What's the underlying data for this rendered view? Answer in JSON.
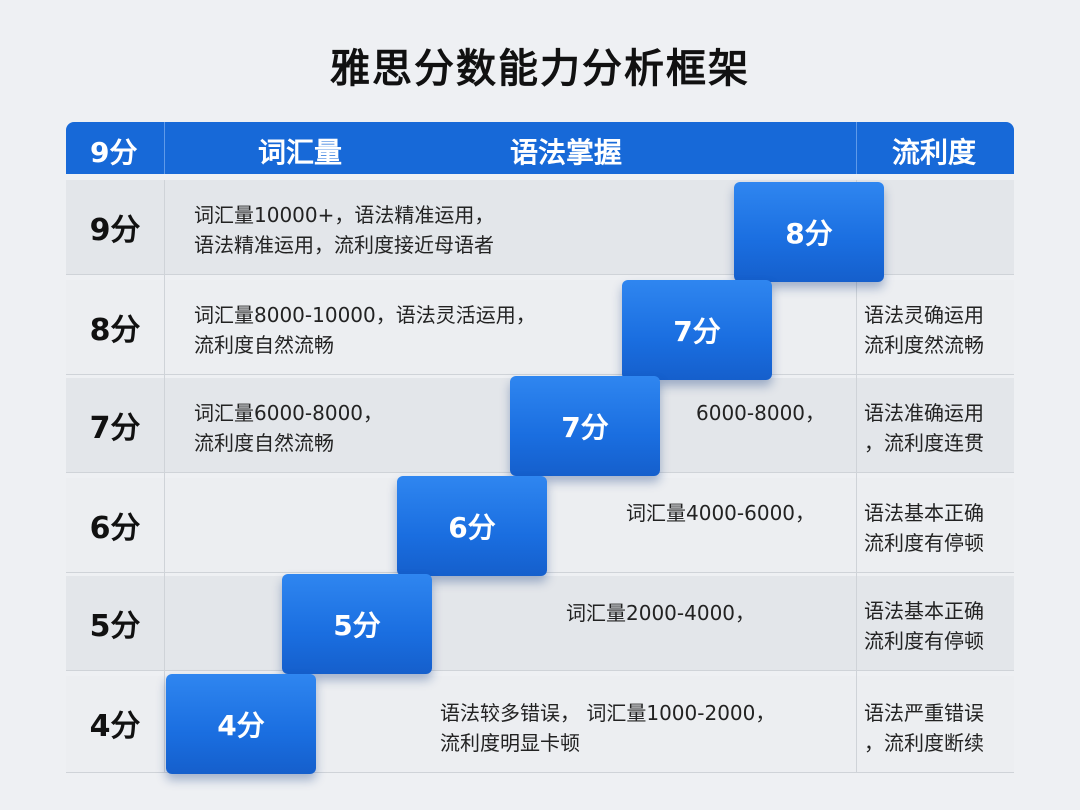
{
  "title": "雅思分数能力分析框架",
  "header": {
    "col1": "9分",
    "col2": "词汇量",
    "col3": "语法掌握",
    "col4": "流利度"
  },
  "rows": [
    {
      "label": "9分",
      "desc": [
        "词汇量10000+，语法精准运用，",
        "语法精准运用，流利度接近母语者"
      ],
      "mid": [],
      "right": []
    },
    {
      "label": "8分",
      "desc": [
        "词汇量8000-10000，语法灵活运用，",
        "流利度自然流畅"
      ],
      "mid": [],
      "right": [
        "语法灵确运用",
        "流利度然流畅"
      ]
    },
    {
      "label": "7分",
      "desc": [
        "词汇量6000-8000，",
        "流利度自然流畅"
      ],
      "mid": [
        "6000-8000，"
      ],
      "right": [
        "语法准确运用",
        "，流利度连贯"
      ]
    },
    {
      "label": "6分",
      "desc": [],
      "mid": [
        "词汇量4000-6000，"
      ],
      "right": [
        "语法基本正确",
        "流利度有停顿"
      ]
    },
    {
      "label": "5分",
      "desc": [],
      "mid": [
        "词汇量2000-4000，"
      ],
      "right": [
        "语法基本正确",
        "流利度有停顿"
      ]
    },
    {
      "label": "4分",
      "desc": [],
      "mid": [
        "语法较多错误， 词汇量1000-2000，",
        "流利度明显卡顿"
      ],
      "right": [
        "语法严重错误",
        "，流利度断续"
      ]
    }
  ],
  "steps": [
    "8分",
    "7分",
    "7分",
    "6分",
    "5分",
    "4分"
  ],
  "colors": {
    "header": "#1769d8",
    "step": "#1a6ee0",
    "row": "#e3e6ea"
  }
}
